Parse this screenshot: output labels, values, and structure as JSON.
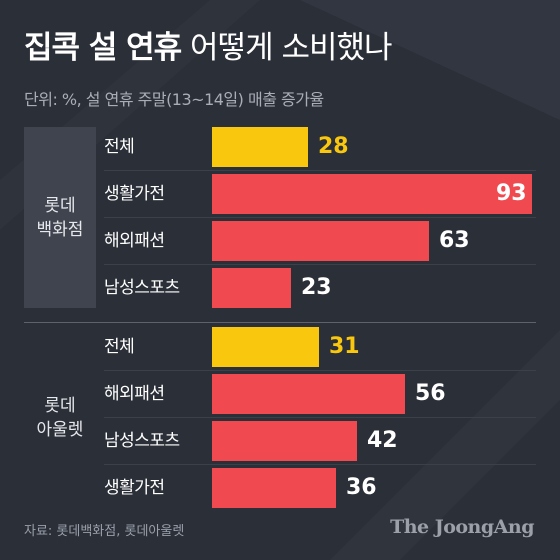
{
  "header": {
    "title_bold": "집콕 설 연휴",
    "title_light": "어떻게 소비했나",
    "subtitle": "단위: %, 설 연휴 주말(13~14일) 매출 증가율"
  },
  "colors": {
    "background": "#2b2f38",
    "total_bar": "#f9c80e",
    "category_bar": "#f0494f",
    "value_on_bar": "#ffffff",
    "total_value": "#f9c80e",
    "value_outside": "#ffffff"
  },
  "chart_data": {
    "type": "bar",
    "orientation": "horizontal",
    "xlim": [
      0,
      93
    ],
    "groups": [
      {
        "name": "롯데\n백화점",
        "categories": [
          "전체",
          "생활가전",
          "해외패션",
          "남성스포츠"
        ],
        "values": [
          28,
          93,
          63,
          23
        ]
      },
      {
        "name": "롯데\n아울렛",
        "categories": [
          "전체",
          "해외패션",
          "남성스포츠",
          "생활가전"
        ],
        "values": [
          31,
          56,
          42,
          36
        ]
      }
    ]
  },
  "footer": {
    "source": "자료: 롯데백화점, 롯데아울렛",
    "logo": "The JoongAng"
  }
}
